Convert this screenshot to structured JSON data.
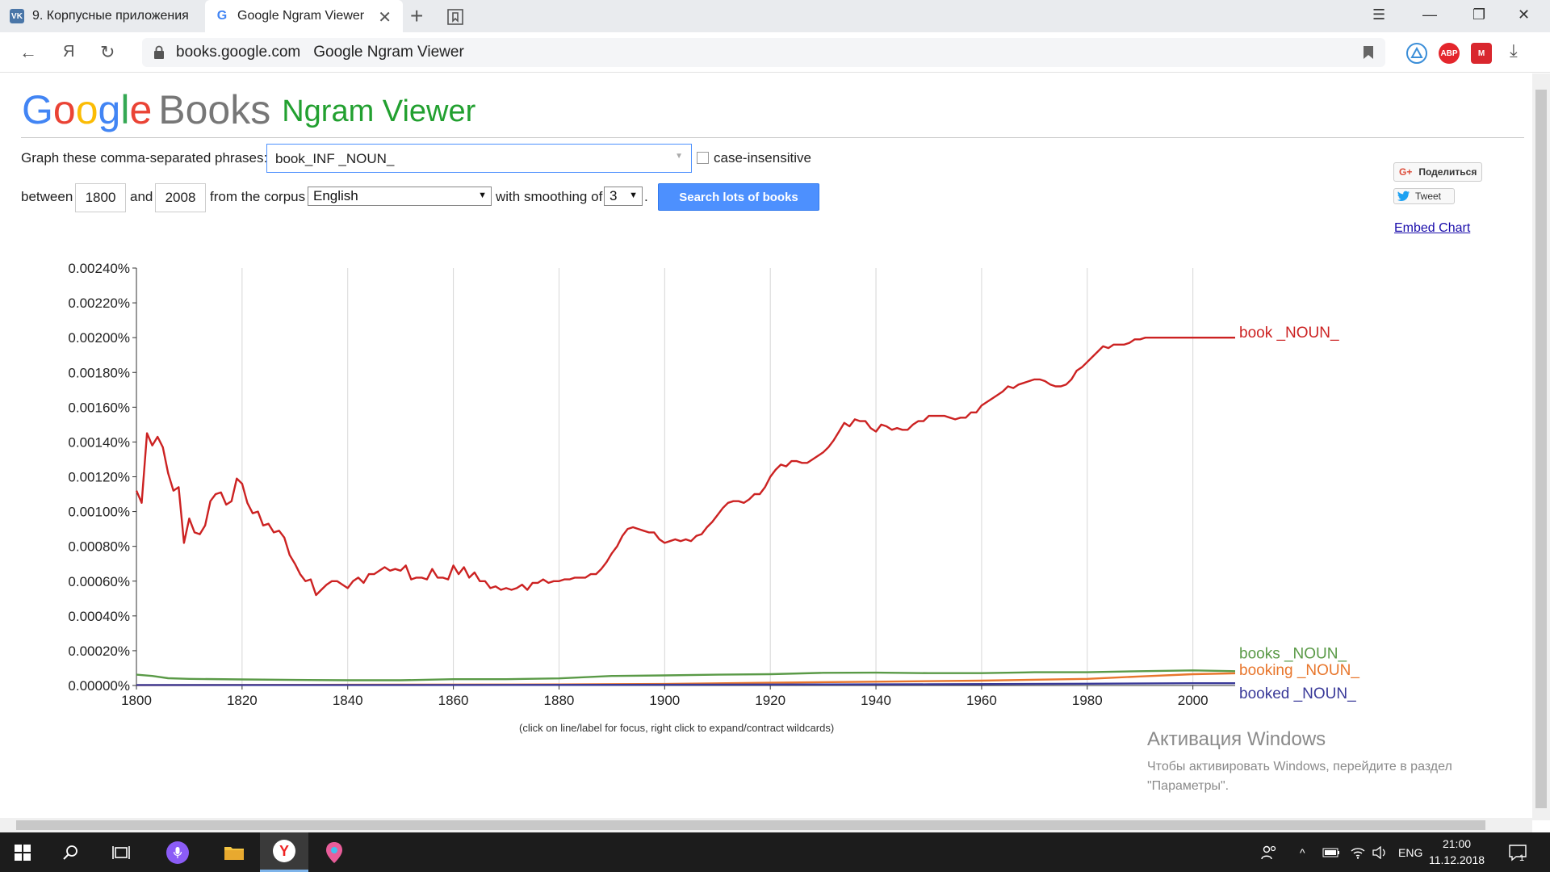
{
  "browser": {
    "tabs": [
      {
        "title": "9. Корпусные приложения",
        "favicon": "vk-icon",
        "active": false
      },
      {
        "title": "Google Ngram Viewer",
        "favicon": "google-icon",
        "active": true
      }
    ],
    "address": {
      "domain": "books.google.com",
      "page_title": "Google Ngram Viewer"
    },
    "extensions": [
      "alice-icon",
      "adblock-icon",
      "mega-icon",
      "downloads-icon"
    ],
    "yandex_letter": "Я"
  },
  "header": {
    "logo_google": "Google",
    "logo_books": "Books",
    "logo_ngram": "Ngram Viewer"
  },
  "form": {
    "phrases_label": "Graph these comma-separated phrases:",
    "phrases_value": "book_INF _NOUN_",
    "case_insensitive_label": "case-insensitive",
    "case_insensitive_checked": false,
    "between_label": "between",
    "start_year": "1800",
    "and_label": "and",
    "end_year": "2008",
    "corpus_label": "from the corpus",
    "corpus_value": "English",
    "smoothing_label": "with smoothing of",
    "smoothing_value": "3",
    "period": ".",
    "search_button": "Search lots of books"
  },
  "share": {
    "share_label": "Поделиться",
    "tweet_label": "Tweet",
    "embed_label": "Embed Chart"
  },
  "chart_hint": "(click on line/label for focus, right click to expand/contract wildcards)",
  "chart_data": {
    "type": "line",
    "title": "",
    "xlabel": "",
    "ylabel": "",
    "xlim": [
      1800,
      2008
    ],
    "ylim": [
      0,
      0.0024
    ],
    "grid": true,
    "x_ticks": [
      "1800",
      "1820",
      "1840",
      "1860",
      "1880",
      "1900",
      "1920",
      "1940",
      "1960",
      "1980",
      "2000"
    ],
    "y_ticks": [
      "0.00000%",
      "0.00020%",
      "0.00040%",
      "0.00060%",
      "0.00080%",
      "0.00100%",
      "0.00120%",
      "0.00140%",
      "0.00160%",
      "0.00180%",
      "0.00200%",
      "0.00220%",
      "0.00240%"
    ],
    "legend": "right-end labels",
    "series": [
      {
        "name": "book _NOUN_",
        "color": "#cc2222",
        "points": [
          [
            1800,
            0.00112
          ],
          [
            1801,
            0.00105
          ],
          [
            1802,
            0.00145
          ],
          [
            1803,
            0.00138
          ],
          [
            1804,
            0.00143
          ],
          [
            1805,
            0.00137
          ],
          [
            1806,
            0.00122
          ],
          [
            1807,
            0.00112
          ],
          [
            1808,
            0.00114
          ],
          [
            1809,
            0.00082
          ],
          [
            1810,
            0.00096
          ],
          [
            1811,
            0.00088
          ],
          [
            1812,
            0.00087
          ],
          [
            1813,
            0.00092
          ],
          [
            1814,
            0.00106
          ],
          [
            1815,
            0.0011
          ],
          [
            1816,
            0.00111
          ],
          [
            1817,
            0.00104
          ],
          [
            1818,
            0.00106
          ],
          [
            1819,
            0.00119
          ],
          [
            1820,
            0.00116
          ],
          [
            1821,
            0.00105
          ],
          [
            1822,
            0.00099
          ],
          [
            1823,
            0.001
          ],
          [
            1824,
            0.00092
          ],
          [
            1825,
            0.00093
          ],
          [
            1826,
            0.00088
          ],
          [
            1827,
            0.00089
          ],
          [
            1828,
            0.00085
          ],
          [
            1829,
            0.00075
          ],
          [
            1830,
            0.0007
          ],
          [
            1831,
            0.00064
          ],
          [
            1832,
            0.0006
          ],
          [
            1833,
            0.00061
          ],
          [
            1834,
            0.00052
          ],
          [
            1835,
            0.00055
          ],
          [
            1836,
            0.00058
          ],
          [
            1837,
            0.0006
          ],
          [
            1838,
            0.0006
          ],
          [
            1839,
            0.00058
          ],
          [
            1840,
            0.00056
          ],
          [
            1841,
            0.0006
          ],
          [
            1842,
            0.00062
          ],
          [
            1843,
            0.00059
          ],
          [
            1844,
            0.00064
          ],
          [
            1845,
            0.00064
          ],
          [
            1846,
            0.00066
          ],
          [
            1847,
            0.00068
          ],
          [
            1848,
            0.00066
          ],
          [
            1849,
            0.00067
          ],
          [
            1850,
            0.00066
          ],
          [
            1851,
            0.00069
          ],
          [
            1852,
            0.00061
          ],
          [
            1853,
            0.00062
          ],
          [
            1854,
            0.00062
          ],
          [
            1855,
            0.00061
          ],
          [
            1856,
            0.00067
          ],
          [
            1857,
            0.00062
          ],
          [
            1858,
            0.00062
          ],
          [
            1859,
            0.00061
          ],
          [
            1860,
            0.00069
          ],
          [
            1861,
            0.00064
          ],
          [
            1862,
            0.00068
          ],
          [
            1863,
            0.00062
          ],
          [
            1864,
            0.00065
          ],
          [
            1865,
            0.0006
          ],
          [
            1866,
            0.0006
          ],
          [
            1867,
            0.00056
          ],
          [
            1868,
            0.00057
          ],
          [
            1869,
            0.00055
          ],
          [
            1870,
            0.00056
          ],
          [
            1871,
            0.00055
          ],
          [
            1872,
            0.00056
          ],
          [
            1873,
            0.00058
          ],
          [
            1874,
            0.00055
          ],
          [
            1875,
            0.00059
          ],
          [
            1876,
            0.00059
          ],
          [
            1877,
            0.00061
          ],
          [
            1878,
            0.00059
          ],
          [
            1879,
            0.0006
          ],
          [
            1880,
            0.0006
          ],
          [
            1881,
            0.00061
          ],
          [
            1882,
            0.00061
          ],
          [
            1883,
            0.00062
          ],
          [
            1884,
            0.00062
          ],
          [
            1885,
            0.00062
          ],
          [
            1886,
            0.00064
          ],
          [
            1887,
            0.00064
          ],
          [
            1888,
            0.00067
          ],
          [
            1889,
            0.00071
          ],
          [
            1890,
            0.00076
          ],
          [
            1891,
            0.0008
          ],
          [
            1892,
            0.00086
          ],
          [
            1893,
            0.0009
          ],
          [
            1894,
            0.00091
          ],
          [
            1895,
            0.0009
          ],
          [
            1896,
            0.00089
          ],
          [
            1897,
            0.00088
          ],
          [
            1898,
            0.00088
          ],
          [
            1899,
            0.00084
          ],
          [
            1900,
            0.00082
          ],
          [
            1901,
            0.00083
          ],
          [
            1902,
            0.00084
          ],
          [
            1903,
            0.00083
          ],
          [
            1904,
            0.00084
          ],
          [
            1905,
            0.00083
          ],
          [
            1906,
            0.00086
          ],
          [
            1907,
            0.00087
          ],
          [
            1908,
            0.00091
          ],
          [
            1909,
            0.00094
          ],
          [
            1910,
            0.00098
          ],
          [
            1911,
            0.00102
          ],
          [
            1912,
            0.00105
          ],
          [
            1913,
            0.00106
          ],
          [
            1914,
            0.00106
          ],
          [
            1915,
            0.00105
          ],
          [
            1916,
            0.00107
          ],
          [
            1917,
            0.0011
          ],
          [
            1918,
            0.0011
          ],
          [
            1919,
            0.00114
          ],
          [
            1920,
            0.0012
          ],
          [
            1921,
            0.00124
          ],
          [
            1922,
            0.00127
          ],
          [
            1923,
            0.00126
          ],
          [
            1924,
            0.00129
          ],
          [
            1925,
            0.00129
          ],
          [
            1926,
            0.00128
          ],
          [
            1927,
            0.00128
          ],
          [
            1928,
            0.0013
          ],
          [
            1929,
            0.00132
          ],
          [
            1930,
            0.00134
          ],
          [
            1931,
            0.00137
          ],
          [
            1932,
            0.00141
          ],
          [
            1933,
            0.00146
          ],
          [
            1934,
            0.00151
          ],
          [
            1935,
            0.00149
          ],
          [
            1936,
            0.00153
          ],
          [
            1937,
            0.00152
          ],
          [
            1938,
            0.00152
          ],
          [
            1939,
            0.00148
          ],
          [
            1940,
            0.00146
          ],
          [
            1941,
            0.0015
          ],
          [
            1942,
            0.00149
          ],
          [
            1943,
            0.00147
          ],
          [
            1944,
            0.00148
          ],
          [
            1945,
            0.00147
          ],
          [
            1946,
            0.00147
          ],
          [
            1947,
            0.0015
          ],
          [
            1948,
            0.00152
          ],
          [
            1949,
            0.00152
          ],
          [
            1950,
            0.00155
          ],
          [
            1951,
            0.00155
          ],
          [
            1952,
            0.00155
          ],
          [
            1953,
            0.00155
          ],
          [
            1954,
            0.00154
          ],
          [
            1955,
            0.00153
          ],
          [
            1956,
            0.00154
          ],
          [
            1957,
            0.00154
          ],
          [
            1958,
            0.00157
          ],
          [
            1959,
            0.00157
          ],
          [
            1960,
            0.00161
          ],
          [
            1961,
            0.00163
          ],
          [
            1962,
            0.00165
          ],
          [
            1963,
            0.00167
          ],
          [
            1964,
            0.00169
          ],
          [
            1965,
            0.00172
          ],
          [
            1966,
            0.00171
          ],
          [
            1967,
            0.00173
          ],
          [
            1968,
            0.00174
          ],
          [
            1969,
            0.00175
          ],
          [
            1970,
            0.00176
          ],
          [
            1971,
            0.00176
          ],
          [
            1972,
            0.00175
          ],
          [
            1973,
            0.00173
          ],
          [
            1974,
            0.00172
          ],
          [
            1975,
            0.00172
          ],
          [
            1976,
            0.00173
          ],
          [
            1977,
            0.00176
          ],
          [
            1978,
            0.00181
          ],
          [
            1979,
            0.00183
          ],
          [
            1980,
            0.00186
          ],
          [
            1981,
            0.00189
          ],
          [
            1982,
            0.00192
          ],
          [
            1983,
            0.00195
          ],
          [
            1984,
            0.00194
          ],
          [
            1985,
            0.00196
          ],
          [
            1986,
            0.00196
          ],
          [
            1987,
            0.00196
          ],
          [
            1988,
            0.00197
          ],
          [
            1989,
            0.00199
          ],
          [
            1990,
            0.00199
          ],
          [
            1991,
            0.002
          ],
          [
            2008,
            0.002
          ]
        ]
      },
      {
        "name": "books _NOUN_",
        "color": "#5a9a47",
        "points": [
          [
            1800,
            6.2e-05
          ],
          [
            1803,
            5.5e-05
          ],
          [
            1806,
            4.2e-05
          ],
          [
            1810,
            3.8e-05
          ],
          [
            1820,
            3.5e-05
          ],
          [
            1830,
            3.2e-05
          ],
          [
            1840,
            3e-05
          ],
          [
            1850,
            3e-05
          ],
          [
            1860,
            3.6e-05
          ],
          [
            1870,
            3.6e-05
          ],
          [
            1880,
            4.1e-05
          ],
          [
            1890,
            5.5e-05
          ],
          [
            1900,
            5.8e-05
          ],
          [
            1910,
            6.2e-05
          ],
          [
            1920,
            6.5e-05
          ],
          [
            1930,
            7.3e-05
          ],
          [
            1940,
            7.4e-05
          ],
          [
            1950,
            7.1e-05
          ],
          [
            1960,
            7.1e-05
          ],
          [
            1970,
            7.6e-05
          ],
          [
            1980,
            7.6e-05
          ],
          [
            1990,
            8.2e-05
          ],
          [
            2000,
            8.7e-05
          ],
          [
            2008,
            8.2e-05
          ]
        ]
      },
      {
        "name": "booking _NOUN_",
        "color": "#e8762c",
        "points": [
          [
            1800,
            2e-06
          ],
          [
            1840,
            4e-06
          ],
          [
            1880,
            6e-06
          ],
          [
            1900,
            9e-06
          ],
          [
            1920,
            1.6e-05
          ],
          [
            1940,
            2.2e-05
          ],
          [
            1960,
            2.8e-05
          ],
          [
            1980,
            3.8e-05
          ],
          [
            1990,
            5.2e-05
          ],
          [
            2000,
            6.5e-05
          ],
          [
            2008,
            7e-05
          ]
        ]
      },
      {
        "name": "booked _NOUN_",
        "color": "#3a3a99",
        "points": [
          [
            1800,
            3e-06
          ],
          [
            1850,
            3e-06
          ],
          [
            1900,
            4e-06
          ],
          [
            1950,
            7e-06
          ],
          [
            1980,
            1e-05
          ],
          [
            2000,
            1.3e-05
          ],
          [
            2008,
            1.3e-05
          ]
        ]
      }
    ]
  },
  "activation": {
    "title": "Активация Windows",
    "line1": "Чтобы активировать Windows, перейдите в раздел",
    "line2": "\"Параметры\"."
  },
  "taskbar": {
    "lang": "ENG",
    "time": "21:00",
    "date": "11.12.2018",
    "notification_count": "1"
  }
}
